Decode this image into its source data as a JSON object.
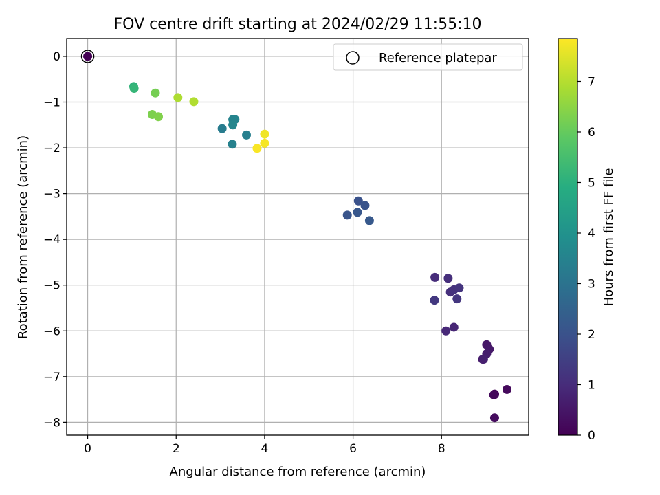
{
  "chart_data": {
    "type": "scatter",
    "title": "FOV centre drift starting at 2024/02/29 11:55:10",
    "xlabel": "Angular distance from reference (arcmin)",
    "ylabel": "Rotation from reference (arcmin)",
    "xlim": [
      -0.475,
      9.97
    ],
    "ylim": [
      -8.28,
      0.39
    ],
    "xticks": [
      0,
      2,
      4,
      6,
      8
    ],
    "yticks": [
      0,
      -1,
      -2,
      -3,
      -4,
      -5,
      -6,
      -7,
      -8
    ],
    "xtick_labels": [
      "0",
      "2",
      "4",
      "6",
      "8"
    ],
    "ytick_labels": [
      "0",
      "−1",
      "−2",
      "−3",
      "−4",
      "−5",
      "−6",
      "−7",
      "−8"
    ],
    "grid": true,
    "legend": {
      "position": "top-right",
      "entries": [
        "Reference platepar"
      ]
    },
    "colormap": "viridis",
    "colorbar": {
      "label": "Hours from first FF file",
      "range": [
        0,
        7.85
      ],
      "ticks": [
        0,
        1,
        2,
        3,
        4,
        5,
        6,
        7
      ],
      "tick_labels": [
        "0",
        "1",
        "2",
        "3",
        "4",
        "5",
        "6",
        "7"
      ]
    },
    "reference": {
      "x": 0,
      "y": 0,
      "hours": 0
    },
    "points": [
      {
        "x": 0.0,
        "y": 0.0,
        "hours": 0.0
      },
      {
        "x": 9.2,
        "y": -7.38,
        "hours": 0.05
      },
      {
        "x": 9.2,
        "y": -7.39,
        "hours": 0.1
      },
      {
        "x": 9.18,
        "y": -7.4,
        "hours": 0.15
      },
      {
        "x": 9.48,
        "y": -7.28,
        "hours": 0.2
      },
      {
        "x": 9.2,
        "y": -7.9,
        "hours": 0.25
      },
      {
        "x": 9.02,
        "y": -6.3,
        "hours": 0.5
      },
      {
        "x": 9.08,
        "y": -6.4,
        "hours": 0.55
      },
      {
        "x": 8.93,
        "y": -6.62,
        "hours": 0.6
      },
      {
        "x": 9.02,
        "y": -6.5,
        "hours": 0.65
      },
      {
        "x": 8.95,
        "y": -6.62,
        "hours": 0.7
      },
      {
        "x": 8.28,
        "y": -5.92,
        "hours": 0.85
      },
      {
        "x": 8.1,
        "y": -6.0,
        "hours": 0.9
      },
      {
        "x": 7.85,
        "y": -4.83,
        "hours": 1.0
      },
      {
        "x": 8.15,
        "y": -4.85,
        "hours": 1.05
      },
      {
        "x": 8.2,
        "y": -5.15,
        "hours": 1.1
      },
      {
        "x": 8.28,
        "y": -5.1,
        "hours": 1.15
      },
      {
        "x": 8.4,
        "y": -5.06,
        "hours": 1.2
      },
      {
        "x": 8.35,
        "y": -5.3,
        "hours": 1.25
      },
      {
        "x": 7.84,
        "y": -5.33,
        "hours": 1.3
      },
      {
        "x": 6.12,
        "y": -3.16,
        "hours": 2.0
      },
      {
        "x": 6.27,
        "y": -3.26,
        "hours": 2.05
      },
      {
        "x": 5.87,
        "y": -3.47,
        "hours": 2.1
      },
      {
        "x": 6.1,
        "y": -3.41,
        "hours": 2.15
      },
      {
        "x": 6.37,
        "y": -3.59,
        "hours": 2.2
      },
      {
        "x": 3.28,
        "y": -1.38,
        "hours": 3.5
      },
      {
        "x": 3.33,
        "y": -1.38,
        "hours": 3.55
      },
      {
        "x": 3.28,
        "y": -1.5,
        "hours": 3.6
      },
      {
        "x": 3.04,
        "y": -1.58,
        "hours": 3.3
      },
      {
        "x": 3.59,
        "y": -1.72,
        "hours": 3.4
      },
      {
        "x": 3.27,
        "y": -1.92,
        "hours": 3.45
      },
      {
        "x": 1.04,
        "y": -0.66,
        "hours": 5.1
      },
      {
        "x": 1.05,
        "y": -0.7,
        "hours": 5.2
      },
      {
        "x": 1.53,
        "y": -0.8,
        "hours": 6.2
      },
      {
        "x": 1.46,
        "y": -1.27,
        "hours": 6.3
      },
      {
        "x": 1.6,
        "y": -1.32,
        "hours": 6.35
      },
      {
        "x": 2.04,
        "y": -0.9,
        "hours": 6.9
      },
      {
        "x": 2.4,
        "y": -0.99,
        "hours": 6.95
      },
      {
        "x": 4.0,
        "y": -1.7,
        "hours": 7.7
      },
      {
        "x": 4.0,
        "y": -1.9,
        "hours": 7.75
      },
      {
        "x": 3.83,
        "y": -2.01,
        "hours": 7.8
      }
    ]
  }
}
